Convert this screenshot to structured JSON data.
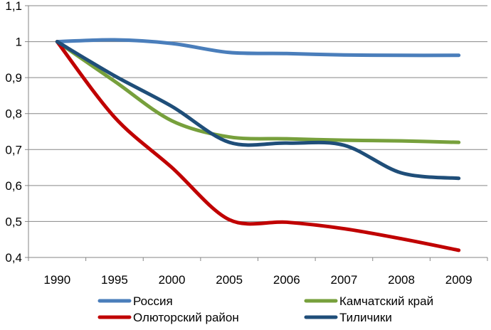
{
  "chart_data": {
    "type": "line",
    "title": "",
    "xlabel": "",
    "ylabel": "",
    "categories": [
      "1990",
      "1995",
      "2000",
      "2005",
      "2006",
      "2007",
      "2008",
      "2009"
    ],
    "ylim": [
      0.4,
      1.1
    ],
    "yticks": [
      0.4,
      0.5,
      0.6,
      0.7,
      0.8,
      0.9,
      1.0,
      1.1
    ],
    "ytick_labels": [
      "0,4",
      "0,5",
      "0,6",
      "0,7",
      "0,8",
      "0,9",
      "1",
      "1,1"
    ],
    "grid": true,
    "legend_position": "bottom",
    "series": [
      {
        "name": "Россия",
        "color": "#4a7ebb",
        "values": [
          1.0,
          1.005,
          0.995,
          0.97,
          0.967,
          0.963,
          0.962,
          0.962
        ]
      },
      {
        "name": "Камчатский край",
        "color": "#77a03c",
        "values": [
          1.0,
          0.89,
          0.78,
          0.735,
          0.73,
          0.726,
          0.724,
          0.72
        ]
      },
      {
        "name": "Олюторский район",
        "color": "#c00000",
        "values": [
          1.0,
          0.79,
          0.65,
          0.505,
          0.498,
          0.48,
          0.452,
          0.42
        ]
      },
      {
        "name": "Тиличики",
        "color": "#1f4e79",
        "values": [
          1.0,
          0.905,
          0.82,
          0.72,
          0.718,
          0.712,
          0.635,
          0.62
        ]
      }
    ]
  }
}
